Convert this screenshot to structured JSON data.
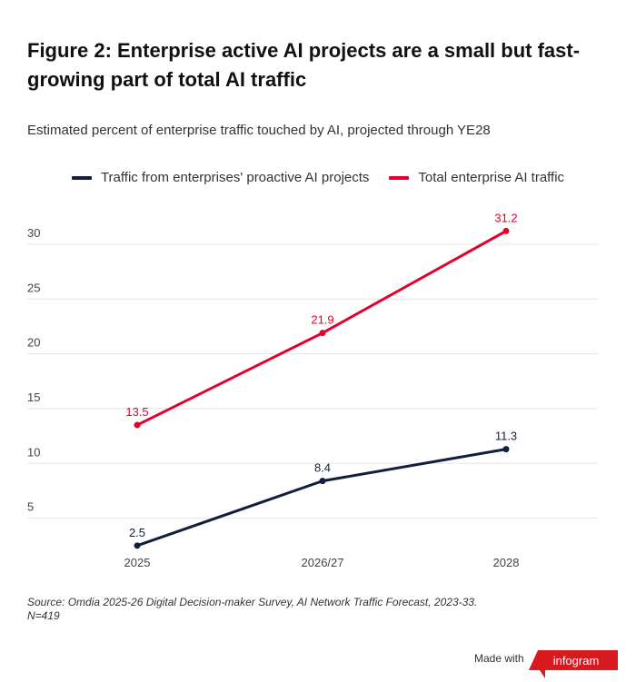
{
  "title": "Figure 2: Enterprise active AI projects are a small but fast-growing part of total AI traffic",
  "subtitle": "Estimated percent of enterprise traffic touched by AI, projected through YE28",
  "source": "Source: Omdia 2025-26 Digital Decision-maker Survey, AI Network Traffic Forecast, 2023-33.",
  "source_n": "N=419",
  "footer": {
    "made_with": "Made with",
    "brand": "infogram"
  },
  "chart_data": {
    "type": "line",
    "categories": [
      "2025",
      "2026/27",
      "2028"
    ],
    "yticks": [
      "5",
      "10",
      "15",
      "20",
      "25",
      "30"
    ],
    "ylim": [
      0,
      32
    ],
    "grid": true,
    "legend_position": "top",
    "series": [
      {
        "name": "Traffic from enterprises' proactive AI projects",
        "values": [
          2.5,
          8.4,
          11.3
        ],
        "labels": [
          "2.5",
          "8.4",
          "11.3"
        ],
        "color": "#0f1f3d"
      },
      {
        "name": "Total enterprise AI traffic",
        "values": [
          13.5,
          21.9,
          31.2
        ],
        "labels": [
          "13.5",
          "21.9",
          "31.2"
        ],
        "color": "#e4002b"
      }
    ]
  }
}
